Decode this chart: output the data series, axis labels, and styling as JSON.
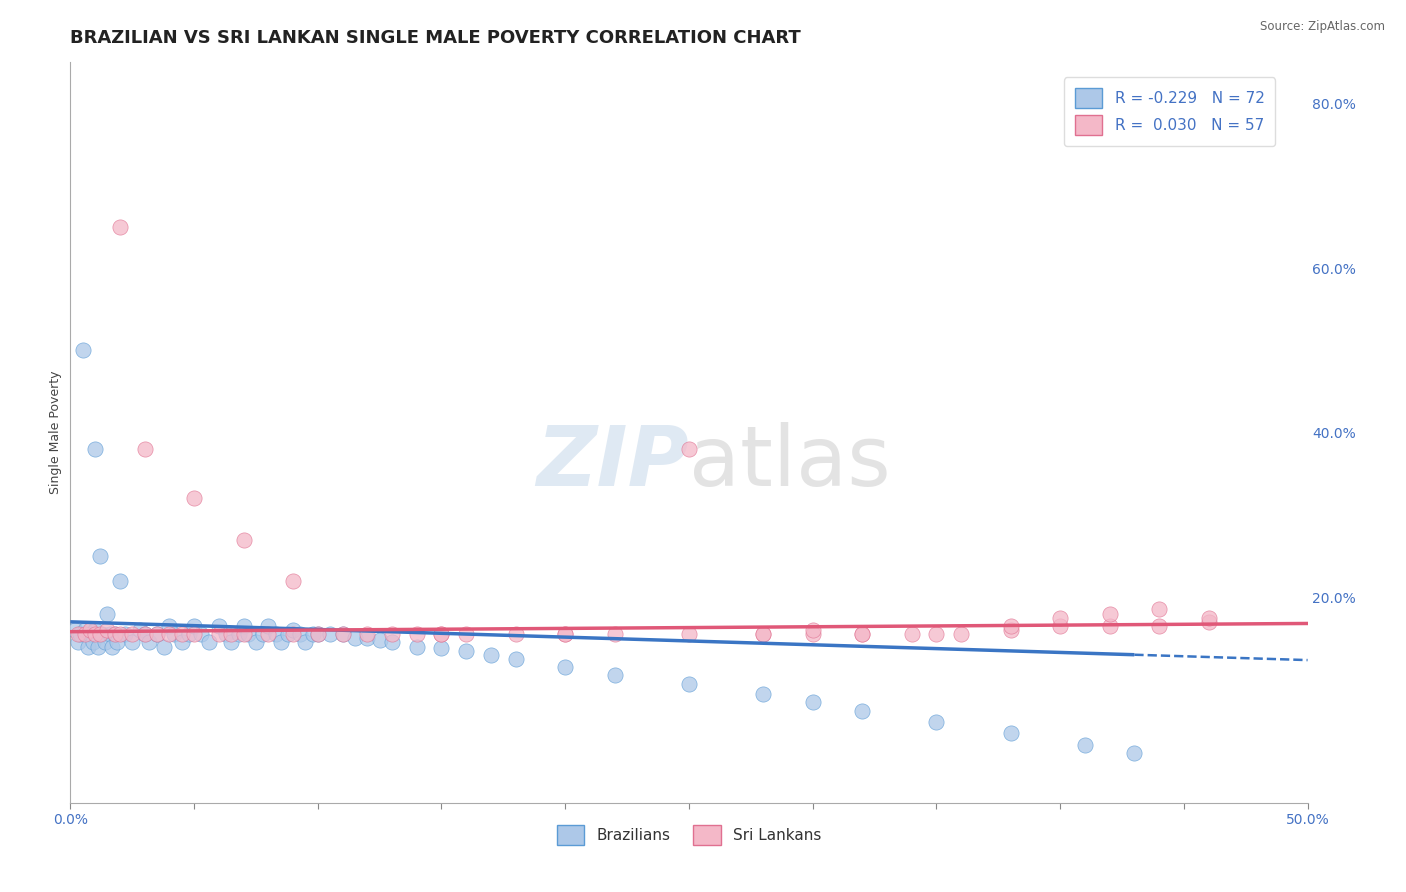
{
  "title": "BRAZILIAN VS SRI LANKAN SINGLE MALE POVERTY CORRELATION CHART",
  "source": "Source: ZipAtlas.com",
  "ylabel": "Single Male Poverty",
  "xmin": 0.0,
  "xmax": 0.5,
  "ymin": -0.05,
  "ymax": 0.85,
  "brazil_R": -0.229,
  "brazil_N": 72,
  "srilanka_R": 0.03,
  "srilanka_N": 57,
  "brazil_color": "#adc8e8",
  "brazil_edge_color": "#5b9bd5",
  "srilanka_color": "#f4b8c8",
  "srilanka_edge_color": "#e07090",
  "brazil_line_color": "#3a75c4",
  "srilanka_line_color": "#e05878",
  "brazil_scatter_x": [
    0.002,
    0.003,
    0.004,
    0.005,
    0.006,
    0.007,
    0.008,
    0.009,
    0.01,
    0.01,
    0.011,
    0.012,
    0.013,
    0.014,
    0.015,
    0.016,
    0.017,
    0.018,
    0.019,
    0.02,
    0.022,
    0.025,
    0.028,
    0.03,
    0.032,
    0.035,
    0.038,
    0.04,
    0.042,
    0.045,
    0.048,
    0.05,
    0.053,
    0.056,
    0.06,
    0.063,
    0.065,
    0.068,
    0.07,
    0.072,
    0.075,
    0.078,
    0.08,
    0.083,
    0.085,
    0.088,
    0.09,
    0.093,
    0.095,
    0.098,
    0.1,
    0.105,
    0.11,
    0.115,
    0.12,
    0.125,
    0.13,
    0.14,
    0.15,
    0.16,
    0.17,
    0.18,
    0.2,
    0.22,
    0.25,
    0.28,
    0.3,
    0.32,
    0.35,
    0.38,
    0.41,
    0.43
  ],
  "brazil_scatter_y": [
    0.16,
    0.145,
    0.155,
    0.5,
    0.16,
    0.14,
    0.155,
    0.145,
    0.16,
    0.38,
    0.14,
    0.25,
    0.155,
    0.145,
    0.18,
    0.155,
    0.14,
    0.155,
    0.145,
    0.22,
    0.155,
    0.145,
    0.16,
    0.155,
    0.145,
    0.155,
    0.14,
    0.165,
    0.155,
    0.145,
    0.155,
    0.165,
    0.155,
    0.145,
    0.165,
    0.155,
    0.145,
    0.155,
    0.165,
    0.155,
    0.145,
    0.155,
    0.165,
    0.155,
    0.145,
    0.155,
    0.16,
    0.155,
    0.145,
    0.155,
    0.155,
    0.155,
    0.155,
    0.15,
    0.15,
    0.148,
    0.145,
    0.14,
    0.138,
    0.135,
    0.13,
    0.125,
    0.115,
    0.105,
    0.095,
    0.082,
    0.072,
    0.062,
    0.048,
    0.035,
    0.02,
    0.01
  ],
  "srilanka_scatter_x": [
    0.003,
    0.006,
    0.008,
    0.01,
    0.012,
    0.015,
    0.018,
    0.02,
    0.025,
    0.03,
    0.035,
    0.04,
    0.045,
    0.05,
    0.06,
    0.065,
    0.07,
    0.08,
    0.09,
    0.1,
    0.11,
    0.12,
    0.13,
    0.14,
    0.15,
    0.16,
    0.18,
    0.2,
    0.22,
    0.25,
    0.28,
    0.3,
    0.32,
    0.35,
    0.38,
    0.4,
    0.42,
    0.44,
    0.46,
    0.02,
    0.03,
    0.05,
    0.07,
    0.09,
    0.28,
    0.3,
    0.32,
    0.34,
    0.36,
    0.38,
    0.4,
    0.42,
    0.44,
    0.46,
    0.15,
    0.2,
    0.25
  ],
  "srilanka_scatter_y": [
    0.155,
    0.155,
    0.16,
    0.155,
    0.155,
    0.16,
    0.155,
    0.155,
    0.155,
    0.155,
    0.155,
    0.155,
    0.155,
    0.155,
    0.155,
    0.155,
    0.155,
    0.155,
    0.155,
    0.155,
    0.155,
    0.155,
    0.155,
    0.155,
    0.155,
    0.155,
    0.155,
    0.155,
    0.155,
    0.155,
    0.155,
    0.155,
    0.155,
    0.155,
    0.16,
    0.165,
    0.165,
    0.165,
    0.17,
    0.65,
    0.38,
    0.32,
    0.27,
    0.22,
    0.155,
    0.16,
    0.155,
    0.155,
    0.155,
    0.165,
    0.175,
    0.18,
    0.185,
    0.175,
    0.155,
    0.155,
    0.38
  ],
  "background_color": "#ffffff",
  "grid_color": "#c8c8c8",
  "title_fontsize": 13,
  "axis_label_fontsize": 9,
  "tick_fontsize": 10,
  "legend_fontsize": 11
}
